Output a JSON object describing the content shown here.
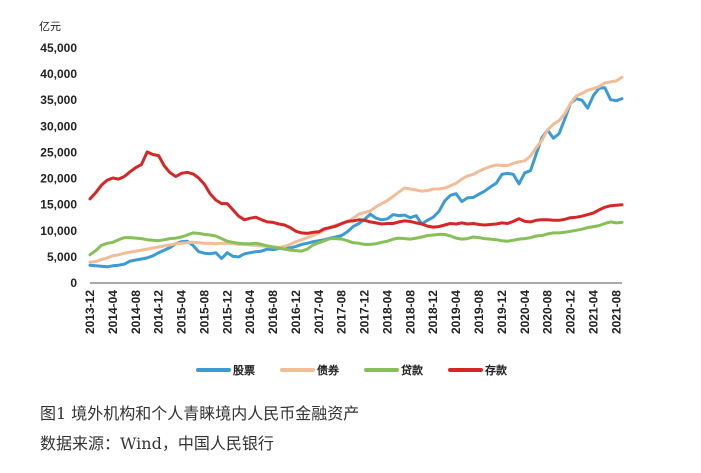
{
  "chart_data": {
    "type": "line",
    "unit_label": "亿元",
    "ylim": [
      0,
      45000
    ],
    "yticks": [
      "0",
      "5,000",
      "10,000",
      "15,000",
      "20,000",
      "25,000",
      "30,000",
      "35,000",
      "40,000",
      "45,000"
    ],
    "x": [
      "2013-12",
      "2014-01",
      "2014-02",
      "2014-03",
      "2014-04",
      "2014-05",
      "2014-06",
      "2014-07",
      "2014-08",
      "2014-09",
      "2014-10",
      "2014-11",
      "2014-12",
      "2015-01",
      "2015-02",
      "2015-03",
      "2015-04",
      "2015-05",
      "2015-06",
      "2015-07",
      "2015-08",
      "2015-09",
      "2015-10",
      "2015-11",
      "2015-12",
      "2016-01",
      "2016-02",
      "2016-03",
      "2016-04",
      "2016-05",
      "2016-06",
      "2016-07",
      "2016-08",
      "2016-09",
      "2016-10",
      "2016-11",
      "2016-12",
      "2017-01",
      "2017-02",
      "2017-03",
      "2017-04",
      "2017-05",
      "2017-06",
      "2017-07",
      "2017-08",
      "2017-09",
      "2017-10",
      "2017-11",
      "2017-12",
      "2018-01",
      "2018-02",
      "2018-03",
      "2018-04",
      "2018-05",
      "2018-06",
      "2018-07",
      "2018-08",
      "2018-09",
      "2018-10",
      "2018-11",
      "2018-12",
      "2019-01",
      "2019-02",
      "2019-03",
      "2019-04",
      "2019-05",
      "2019-06",
      "2019-07",
      "2019-08",
      "2019-09",
      "2019-10",
      "2019-11",
      "2019-12",
      "2020-01",
      "2020-02",
      "2020-03",
      "2020-04",
      "2020-05",
      "2020-06",
      "2020-07",
      "2020-08",
      "2020-09",
      "2020-10",
      "2020-11",
      "2020-12",
      "2021-01",
      "2021-02",
      "2021-03",
      "2021-04",
      "2021-05",
      "2021-06",
      "2021-07",
      "2021-08",
      "2021-09"
    ],
    "xtick_labels": [
      "2013-12",
      "2014-04",
      "2014-08",
      "2014-12",
      "2015-04",
      "2015-08",
      "2015-12",
      "2016-04",
      "2016-08",
      "2016-12",
      "2017-04",
      "2017-08",
      "2017-12",
      "2018-04",
      "2018-08",
      "2018-12",
      "2019-04",
      "2019-08",
      "2019-12",
      "2020-04",
      "2020-08",
      "2020-12",
      "2021-04",
      "2021-08"
    ],
    "series": [
      {
        "name": "股票",
        "color": "#3a9bd5",
        "values": [
          3400,
          3300,
          3200,
          3100,
          3300,
          3400,
          3600,
          4200,
          4400,
          4600,
          4800,
          5200,
          5800,
          6300,
          6800,
          7500,
          7900,
          8000,
          7200,
          6000,
          5700,
          5600,
          5800,
          4700,
          5800,
          5100,
          5000,
          5600,
          5800,
          6000,
          6100,
          6500,
          6400,
          6600,
          7000,
          6700,
          7000,
          7400,
          7600,
          7900,
          8100,
          8300,
          8600,
          8800,
          9100,
          9800,
          10800,
          11400,
          12200,
          13200,
          12400,
          12100,
          12300,
          13100,
          12900,
          13000,
          12500,
          12900,
          11300,
          12000,
          12600,
          13700,
          15700,
          16800,
          17100,
          15600,
          16300,
          16400,
          17000,
          17600,
          18400,
          19100,
          20800,
          21000,
          20800,
          19000,
          21100,
          21500,
          24700,
          27800,
          29300,
          27700,
          28600,
          31400,
          34400,
          35300,
          35000,
          33500,
          35900,
          37300,
          37400,
          35100,
          34900,
          35300
        ]
      },
      {
        "name": "债券",
        "color": "#f2bc97",
        "values": [
          4000,
          4100,
          4500,
          4800,
          5200,
          5400,
          5700,
          5900,
          6100,
          6300,
          6500,
          6700,
          6900,
          7100,
          7300,
          7500,
          7600,
          7700,
          7800,
          7700,
          7600,
          7600,
          7500,
          7600,
          7600,
          7500,
          7400,
          7400,
          7300,
          7200,
          7100,
          7000,
          6900,
          6800,
          7000,
          7400,
          7900,
          8300,
          8700,
          9100,
          9600,
          10100,
          10700,
          11100,
          11300,
          11700,
          12400,
          13200,
          13500,
          13800,
          14600,
          15200,
          15800,
          16600,
          17400,
          18200,
          18000,
          17800,
          17600,
          17700,
          18000,
          18000,
          18200,
          18600,
          19100,
          19900,
          20500,
          20800,
          21400,
          21900,
          22300,
          22600,
          22500,
          22500,
          22900,
          23200,
          23400,
          24300,
          25900,
          27300,
          29300,
          30400,
          31100,
          32400,
          34400,
          35800,
          36300,
          36900,
          37200,
          37600,
          38300,
          38500,
          38700,
          39400
        ]
      },
      {
        "name": "贷款",
        "color": "#86c057",
        "values": [
          5400,
          6200,
          7200,
          7600,
          7800,
          8300,
          8700,
          8700,
          8600,
          8500,
          8300,
          8200,
          8100,
          8300,
          8500,
          8600,
          8800,
          9200,
          9600,
          9500,
          9300,
          9200,
          9000,
          8500,
          8000,
          7800,
          7600,
          7500,
          7500,
          7600,
          7400,
          7100,
          6900,
          6700,
          6500,
          6300,
          6200,
          6100,
          6500,
          7300,
          7700,
          8100,
          8500,
          8500,
          8400,
          8100,
          7700,
          7600,
          7400,
          7400,
          7500,
          7800,
          8000,
          8400,
          8600,
          8500,
          8400,
          8600,
          8800,
          9100,
          9200,
          9300,
          9300,
          9000,
          8600,
          8400,
          8500,
          8800,
          8700,
          8500,
          8400,
          8300,
          8100,
          8000,
          8200,
          8400,
          8500,
          8700,
          9000,
          9100,
          9400,
          9600,
          9600,
          9700,
          9900,
          10100,
          10300,
          10600,
          10800,
          11000,
          11400,
          11700,
          11500,
          11600
        ]
      },
      {
        "name": "存款",
        "color": "#d62728",
        "values": [
          16100,
          17300,
          18700,
          19700,
          20100,
          19900,
          20400,
          21300,
          22100,
          22700,
          25100,
          24600,
          24400,
          22400,
          21100,
          20400,
          21000,
          21200,
          20900,
          20100,
          18900,
          17100,
          15900,
          15200,
          15200,
          14000,
          12800,
          12100,
          12400,
          12600,
          12100,
          11700,
          11600,
          11300,
          11100,
          10600,
          9900,
          9600,
          9500,
          9700,
          9800,
          10400,
          10600,
          10900,
          11400,
          11800,
          11900,
          12100,
          12000,
          11700,
          11500,
          11300,
          11400,
          11400,
          11700,
          11900,
          11800,
          11500,
          11300,
          10900,
          10700,
          10800,
          11100,
          11400,
          11300,
          11500,
          11300,
          11400,
          11200,
          11100,
          11200,
          11300,
          11500,
          11400,
          11800,
          12300,
          11800,
          11700,
          12000,
          12100,
          12100,
          12000,
          12000,
          12200,
          12500,
          12600,
          12800,
          13100,
          13400,
          14000,
          14500,
          14800,
          14900,
          15000
        ]
      }
    ]
  },
  "caption": {
    "line1": "图1   境外机构和个人青睐境内人民币金融资产",
    "line2": "数据来源：Wind，中国人民银行"
  }
}
